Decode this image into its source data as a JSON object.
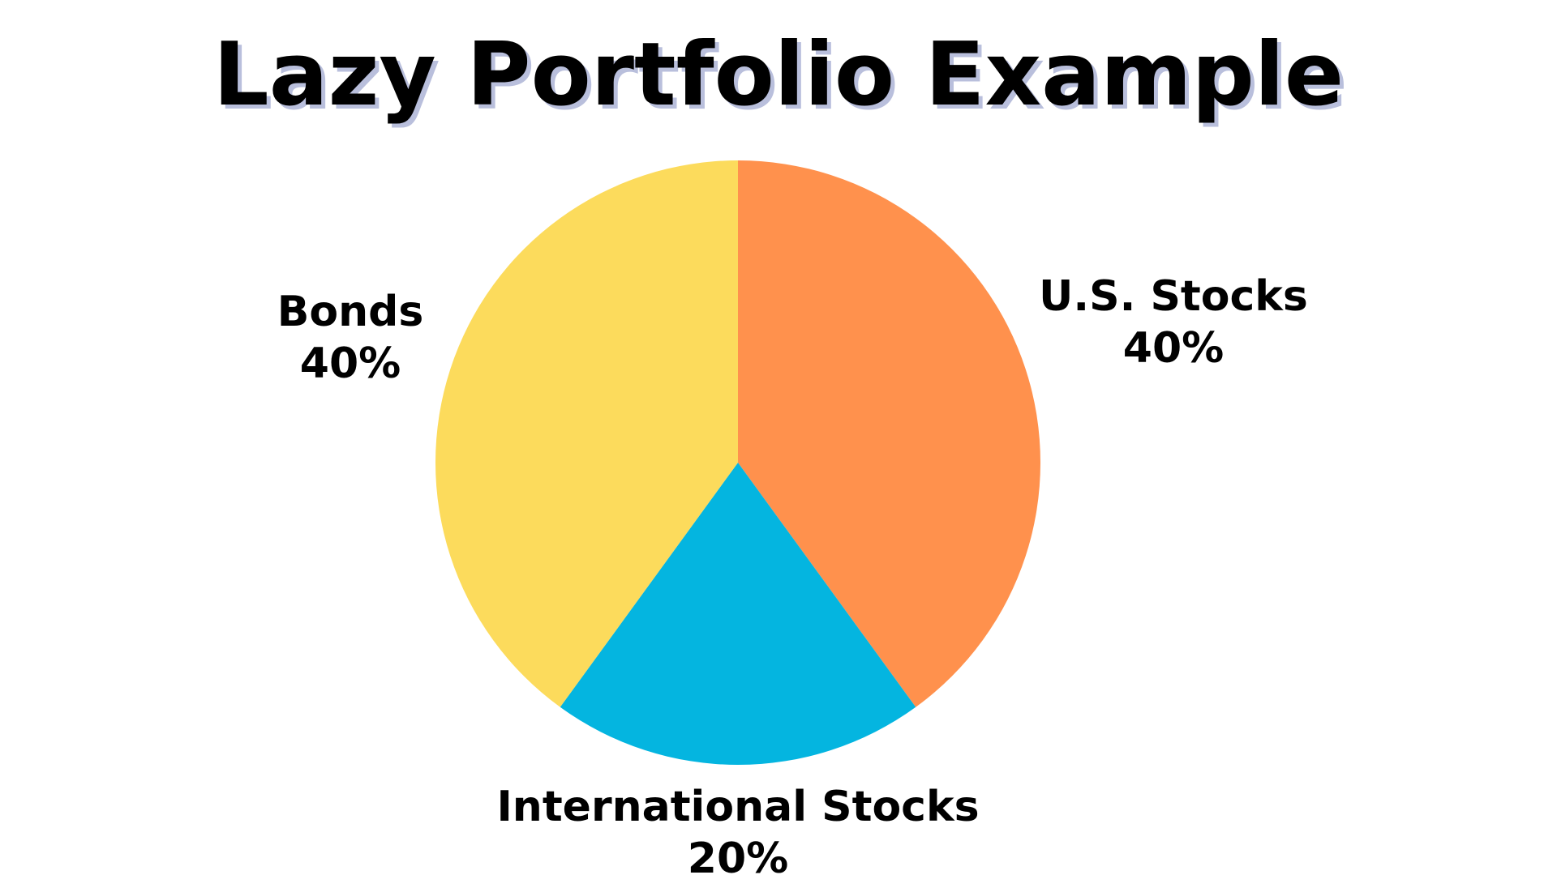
{
  "chart_data": {
    "type": "pie",
    "title": "Lazy Portfolio Example",
    "categories": [
      "U.S. Stocks",
      "International Stocks",
      "Bonds"
    ],
    "values": [
      40,
      20,
      40
    ],
    "value_labels": [
      "40%",
      "20%",
      "40%"
    ],
    "colors": [
      "#ff914d",
      "#04b5e0",
      "#fcdb5c"
    ]
  }
}
